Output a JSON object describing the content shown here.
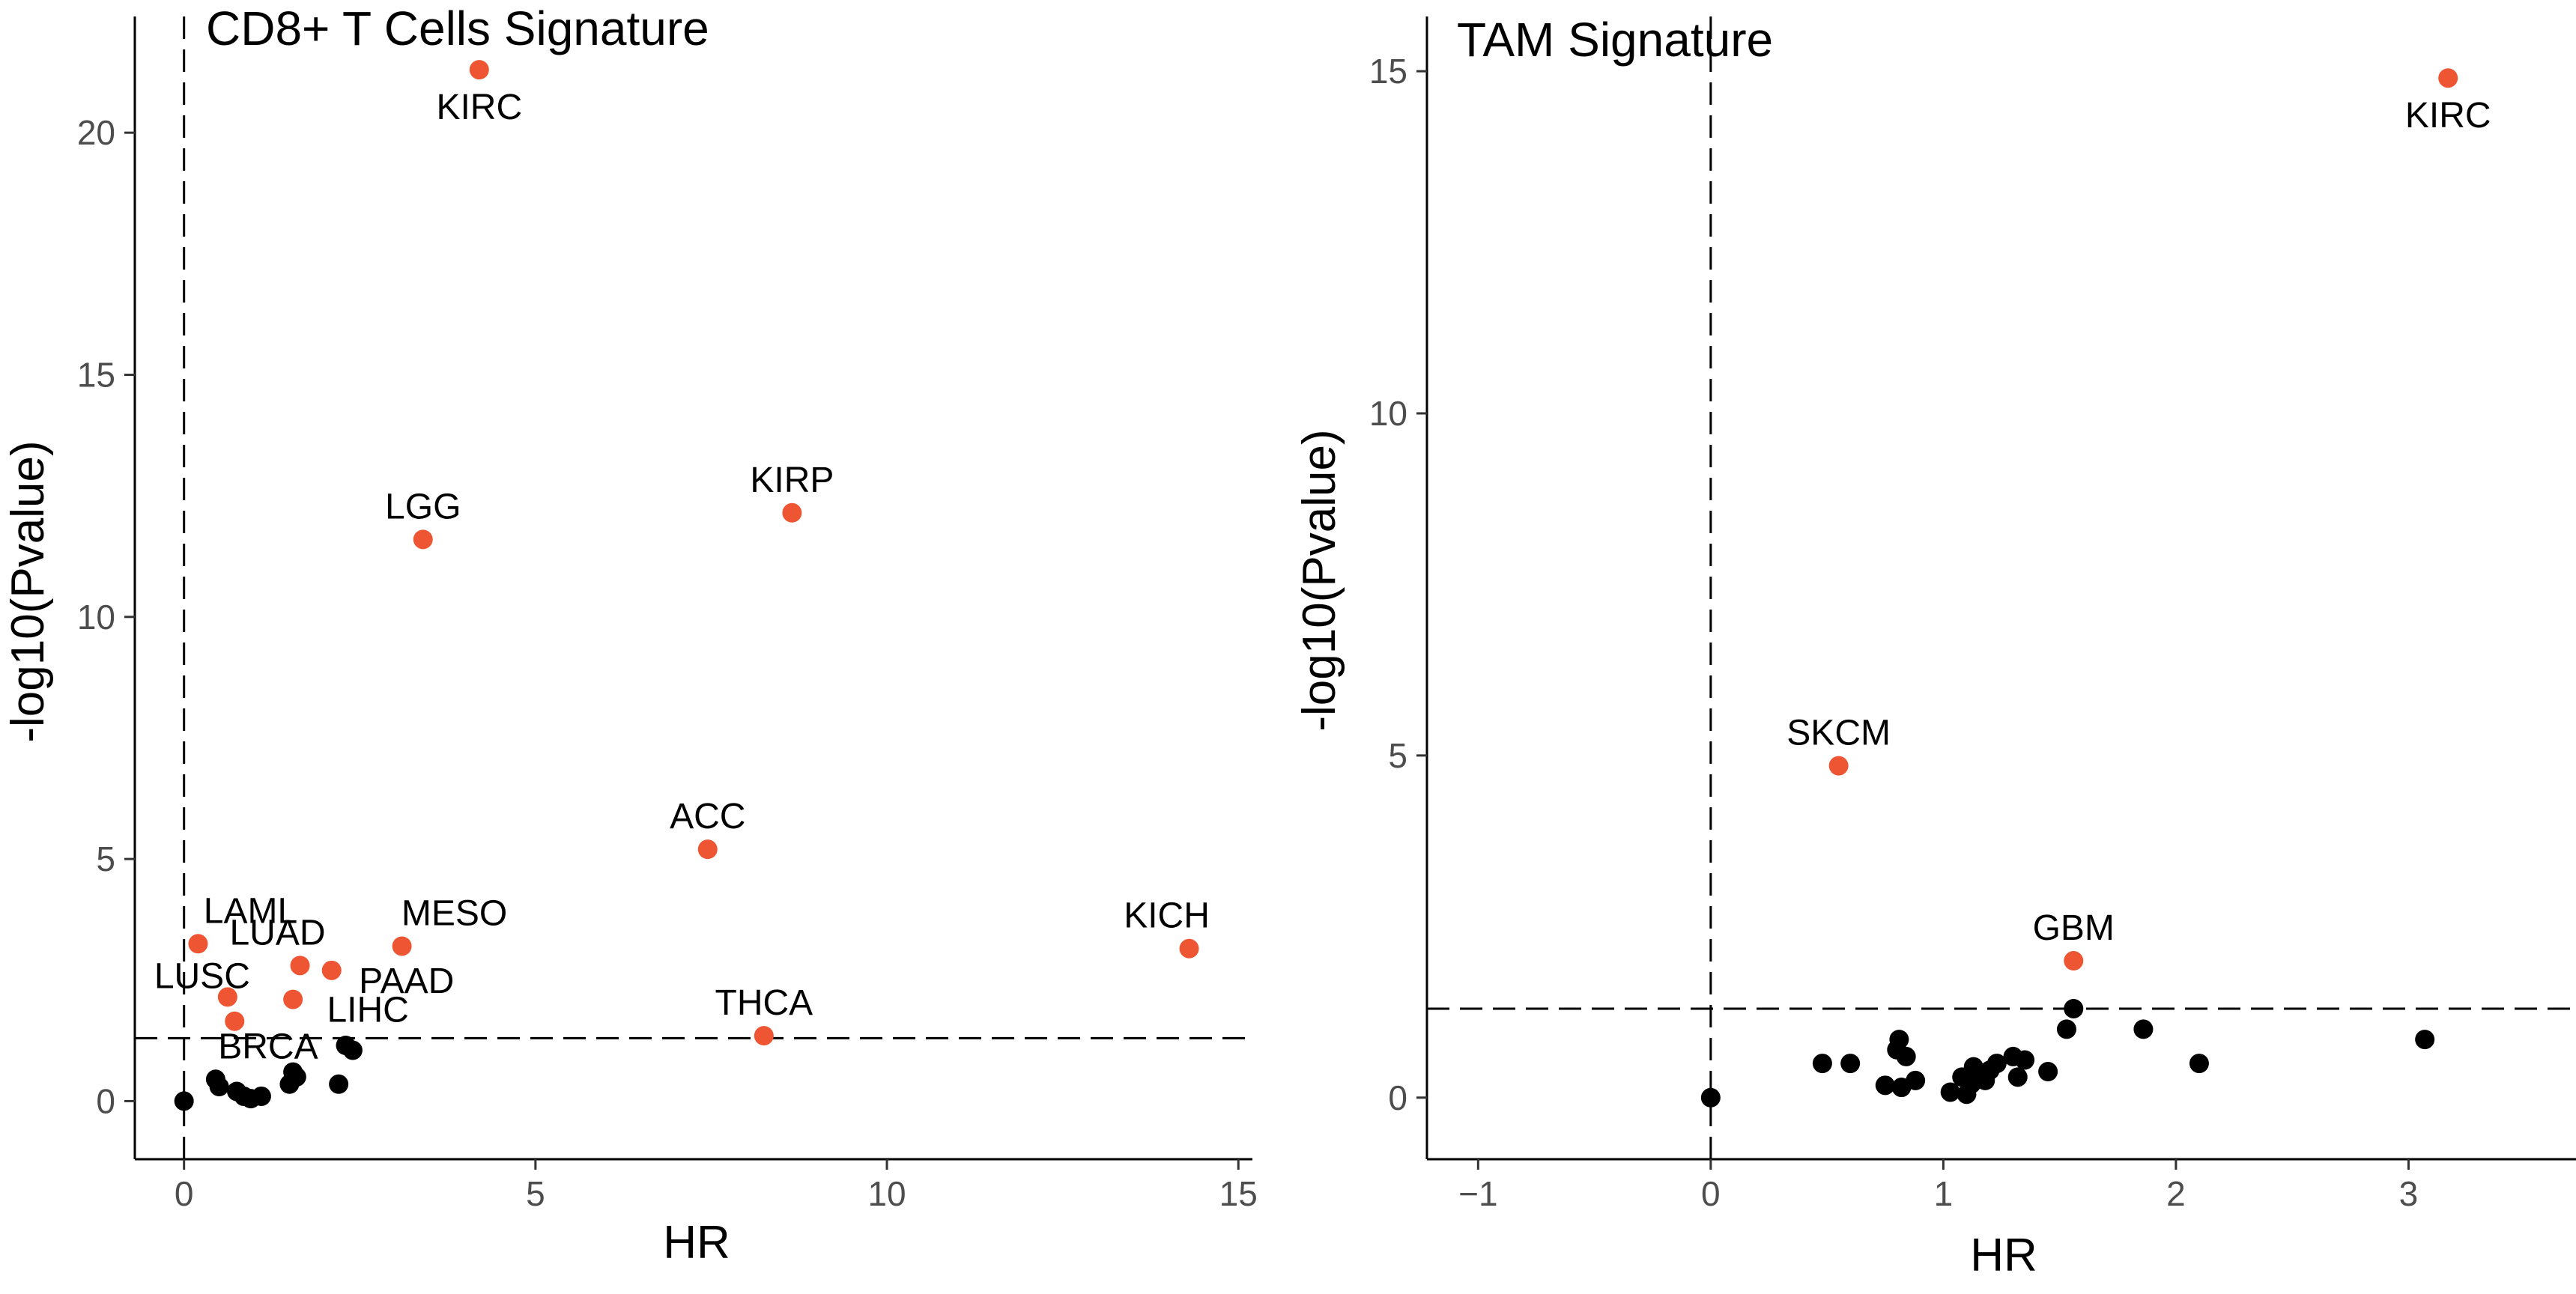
{
  "chart_data": [
    {
      "type": "scatter",
      "title": "CD8+ T Cells Signature",
      "xlabel": "HR",
      "ylabel": "-log10(Pvalue)",
      "xlim": [
        -0.7,
        15.2
      ],
      "ylim": [
        -1.2,
        22.4
      ],
      "xticks": [
        0,
        5,
        10,
        15
      ],
      "yticks": [
        0,
        5,
        10,
        15,
        20
      ],
      "vline_x": 0,
      "hline_y": 1.3,
      "grid": false,
      "highlight_color": "#EE5533",
      "base_color": "#000000",
      "points": [
        {
          "x": 4.2,
          "y": 21.3,
          "label": "KIRC",
          "sig": true,
          "label_pos": "below"
        },
        {
          "x": 3.4,
          "y": 11.6,
          "label": "LGG",
          "sig": true,
          "label_pos": "above"
        },
        {
          "x": 8.65,
          "y": 12.15,
          "label": "KIRP",
          "sig": true,
          "label_pos": "above"
        },
        {
          "x": 7.45,
          "y": 5.2,
          "label": "ACC",
          "sig": true,
          "label_pos": "above"
        },
        {
          "x": 14.3,
          "y": 3.15,
          "label": "KICH",
          "sig": true,
          "label_pos": "above-left"
        },
        {
          "x": 8.25,
          "y": 1.35,
          "label": "THCA",
          "sig": true,
          "label_pos": "above"
        },
        {
          "x": 3.1,
          "y": 3.2,
          "label": "MESO",
          "sig": true,
          "label_pos": "above-right"
        },
        {
          "x": 2.1,
          "y": 2.7,
          "label": "PAAD",
          "sig": true,
          "label_pos": "below-right"
        },
        {
          "x": 1.55,
          "y": 2.1,
          "label": "LIHC",
          "sig": true,
          "label_pos": "below-right"
        },
        {
          "x": 1.65,
          "y": 2.8,
          "label": "LUAD",
          "sig": true,
          "label_pos": "above-left"
        },
        {
          "x": 0.2,
          "y": 3.25,
          "label": "LAML",
          "sig": true,
          "label_pos": "above-right"
        },
        {
          "x": 0.62,
          "y": 2.15,
          "label": "LUSC",
          "sig": true,
          "label_pos": "left"
        },
        {
          "x": 0.72,
          "y": 1.65,
          "label": "",
          "sig": true
        },
        {
          "x": 0.45,
          "y": 0.45,
          "label": "BRCA",
          "sig": false,
          "label_pos": "above-right"
        },
        {
          "x": 0.0,
          "y": 0.0,
          "label": "",
          "sig": false
        },
        {
          "x": 0.5,
          "y": 0.3,
          "label": "",
          "sig": false
        },
        {
          "x": 0.75,
          "y": 0.2,
          "label": "",
          "sig": false
        },
        {
          "x": 0.85,
          "y": 0.1,
          "label": "",
          "sig": false
        },
        {
          "x": 0.95,
          "y": 0.05,
          "label": "",
          "sig": false
        },
        {
          "x": 1.1,
          "y": 0.1,
          "label": "",
          "sig": false
        },
        {
          "x": 1.5,
          "y": 0.35,
          "label": "",
          "sig": false
        },
        {
          "x": 1.55,
          "y": 0.6,
          "label": "",
          "sig": false
        },
        {
          "x": 1.6,
          "y": 0.5,
          "label": "",
          "sig": false
        },
        {
          "x": 2.2,
          "y": 0.35,
          "label": "",
          "sig": false
        },
        {
          "x": 2.3,
          "y": 1.15,
          "label": "",
          "sig": false
        },
        {
          "x": 2.4,
          "y": 1.05,
          "label": "",
          "sig": false
        }
      ]
    },
    {
      "type": "scatter",
      "title": "TAM Signature",
      "xlabel": "HR",
      "ylabel": "-log10(Pvalue)",
      "xlim": [
        -1.22,
        3.72
      ],
      "ylim": [
        -0.9,
        15.8
      ],
      "xticks": [
        -1,
        0,
        1,
        2,
        3
      ],
      "yticks": [
        0,
        5,
        10,
        15
      ],
      "vline_x": 0,
      "hline_y": 1.3,
      "grid": false,
      "highlight_color": "#EE5533",
      "base_color": "#000000",
      "points": [
        {
          "x": 3.17,
          "y": 14.9,
          "label": "KIRC",
          "sig": true,
          "label_pos": "below"
        },
        {
          "x": 0.55,
          "y": 4.85,
          "label": "SKCM",
          "sig": true,
          "label_pos": "above"
        },
        {
          "x": 1.56,
          "y": 2.0,
          "label": "GBM",
          "sig": true,
          "label_pos": "above"
        },
        {
          "x": 0.0,
          "y": 0.0,
          "label": "",
          "sig": false
        },
        {
          "x": 0.48,
          "y": 0.5,
          "label": "",
          "sig": false
        },
        {
          "x": 0.6,
          "y": 0.5,
          "label": "",
          "sig": false
        },
        {
          "x": 0.75,
          "y": 0.18,
          "label": "",
          "sig": false
        },
        {
          "x": 0.81,
          "y": 0.85,
          "label": "",
          "sig": false
        },
        {
          "x": 0.8,
          "y": 0.7,
          "label": "",
          "sig": false
        },
        {
          "x": 0.84,
          "y": 0.6,
          "label": "",
          "sig": false
        },
        {
          "x": 0.82,
          "y": 0.15,
          "label": "",
          "sig": false
        },
        {
          "x": 0.88,
          "y": 0.25,
          "label": "",
          "sig": false
        },
        {
          "x": 1.03,
          "y": 0.08,
          "label": "",
          "sig": false
        },
        {
          "x": 1.08,
          "y": 0.3,
          "label": "",
          "sig": false
        },
        {
          "x": 1.1,
          "y": 0.05,
          "label": "",
          "sig": false
        },
        {
          "x": 1.12,
          "y": 0.2,
          "label": "",
          "sig": false
        },
        {
          "x": 1.13,
          "y": 0.45,
          "label": "",
          "sig": false
        },
        {
          "x": 1.18,
          "y": 0.25,
          "label": "",
          "sig": false
        },
        {
          "x": 1.2,
          "y": 0.4,
          "label": "",
          "sig": false
        },
        {
          "x": 1.23,
          "y": 0.5,
          "label": "",
          "sig": false
        },
        {
          "x": 1.3,
          "y": 0.6,
          "label": "",
          "sig": false
        },
        {
          "x": 1.32,
          "y": 0.3,
          "label": "",
          "sig": false
        },
        {
          "x": 1.35,
          "y": 0.55,
          "label": "",
          "sig": false
        },
        {
          "x": 1.45,
          "y": 0.38,
          "label": "",
          "sig": false
        },
        {
          "x": 1.53,
          "y": 1.0,
          "label": "",
          "sig": false
        },
        {
          "x": 1.56,
          "y": 1.3,
          "label": "",
          "sig": false
        },
        {
          "x": 1.86,
          "y": 1.0,
          "label": "",
          "sig": false
        },
        {
          "x": 2.1,
          "y": 0.5,
          "label": "",
          "sig": false
        },
        {
          "x": 3.07,
          "y": 0.85,
          "label": "",
          "sig": false
        }
      ]
    }
  ]
}
